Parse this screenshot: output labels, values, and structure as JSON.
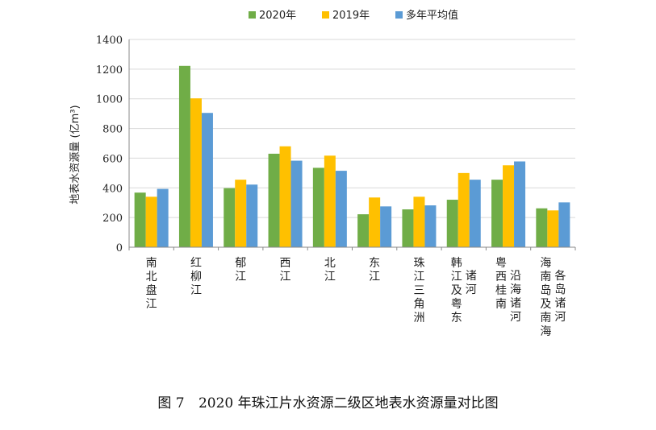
{
  "chart_data": {
    "type": "bar",
    "title": "",
    "ylabel": "地表水资源量 (亿m³)",
    "ylim": [
      0,
      1400
    ],
    "yticks": [
      0,
      200,
      400,
      600,
      800,
      1000,
      1200,
      1400
    ],
    "grid": true,
    "legend_position": "top-center",
    "categories": [
      "南北盘江",
      "红柳江",
      "郁江",
      "西江",
      "北江",
      "东江",
      "珠江三角洲",
      "韩江及粤东诸河",
      "粤西桂南沿海诸河",
      "海南岛及南海各岛诸河"
    ],
    "category_lines": [
      [
        [
          "南",
          "北",
          "盘",
          "江"
        ]
      ],
      [
        [
          "红",
          "柳",
          "江"
        ]
      ],
      [
        [
          "郁",
          "江"
        ]
      ],
      [
        [
          "西",
          "江"
        ]
      ],
      [
        [
          "北",
          "江"
        ]
      ],
      [
        [
          "东",
          "江"
        ]
      ],
      [
        [
          "珠",
          "江",
          "三",
          "角",
          "洲"
        ]
      ],
      [
        [
          "韩",
          "江",
          "及",
          "粤",
          "东"
        ],
        [
          "诸",
          "河"
        ]
      ],
      [
        [
          "粤",
          "西",
          "桂",
          "南"
        ],
        [
          "沿",
          "海",
          "诸",
          "河"
        ]
      ],
      [
        [
          "海",
          "南",
          "岛",
          "及",
          "南",
          "海"
        ],
        [
          "各",
          "岛",
          "诸",
          "河"
        ]
      ]
    ],
    "series": [
      {
        "name": "2020年",
        "color": "#70AD47",
        "values": [
          368,
          1222,
          398,
          630,
          535,
          222,
          255,
          320,
          455,
          262
        ]
      },
      {
        "name": "2019年",
        "color": "#FFC000",
        "values": [
          340,
          1003,
          455,
          680,
          617,
          335,
          340,
          500,
          552,
          248
        ]
      },
      {
        "name": "多年平均值",
        "color": "#5B9BD5",
        "values": [
          393,
          905,
          422,
          583,
          515,
          275,
          282,
          455,
          578,
          302
        ]
      }
    ]
  },
  "caption": {
    "label": "图 7",
    "text": "2020 年珠江片水资源二级区地表水资源量对比图"
  }
}
